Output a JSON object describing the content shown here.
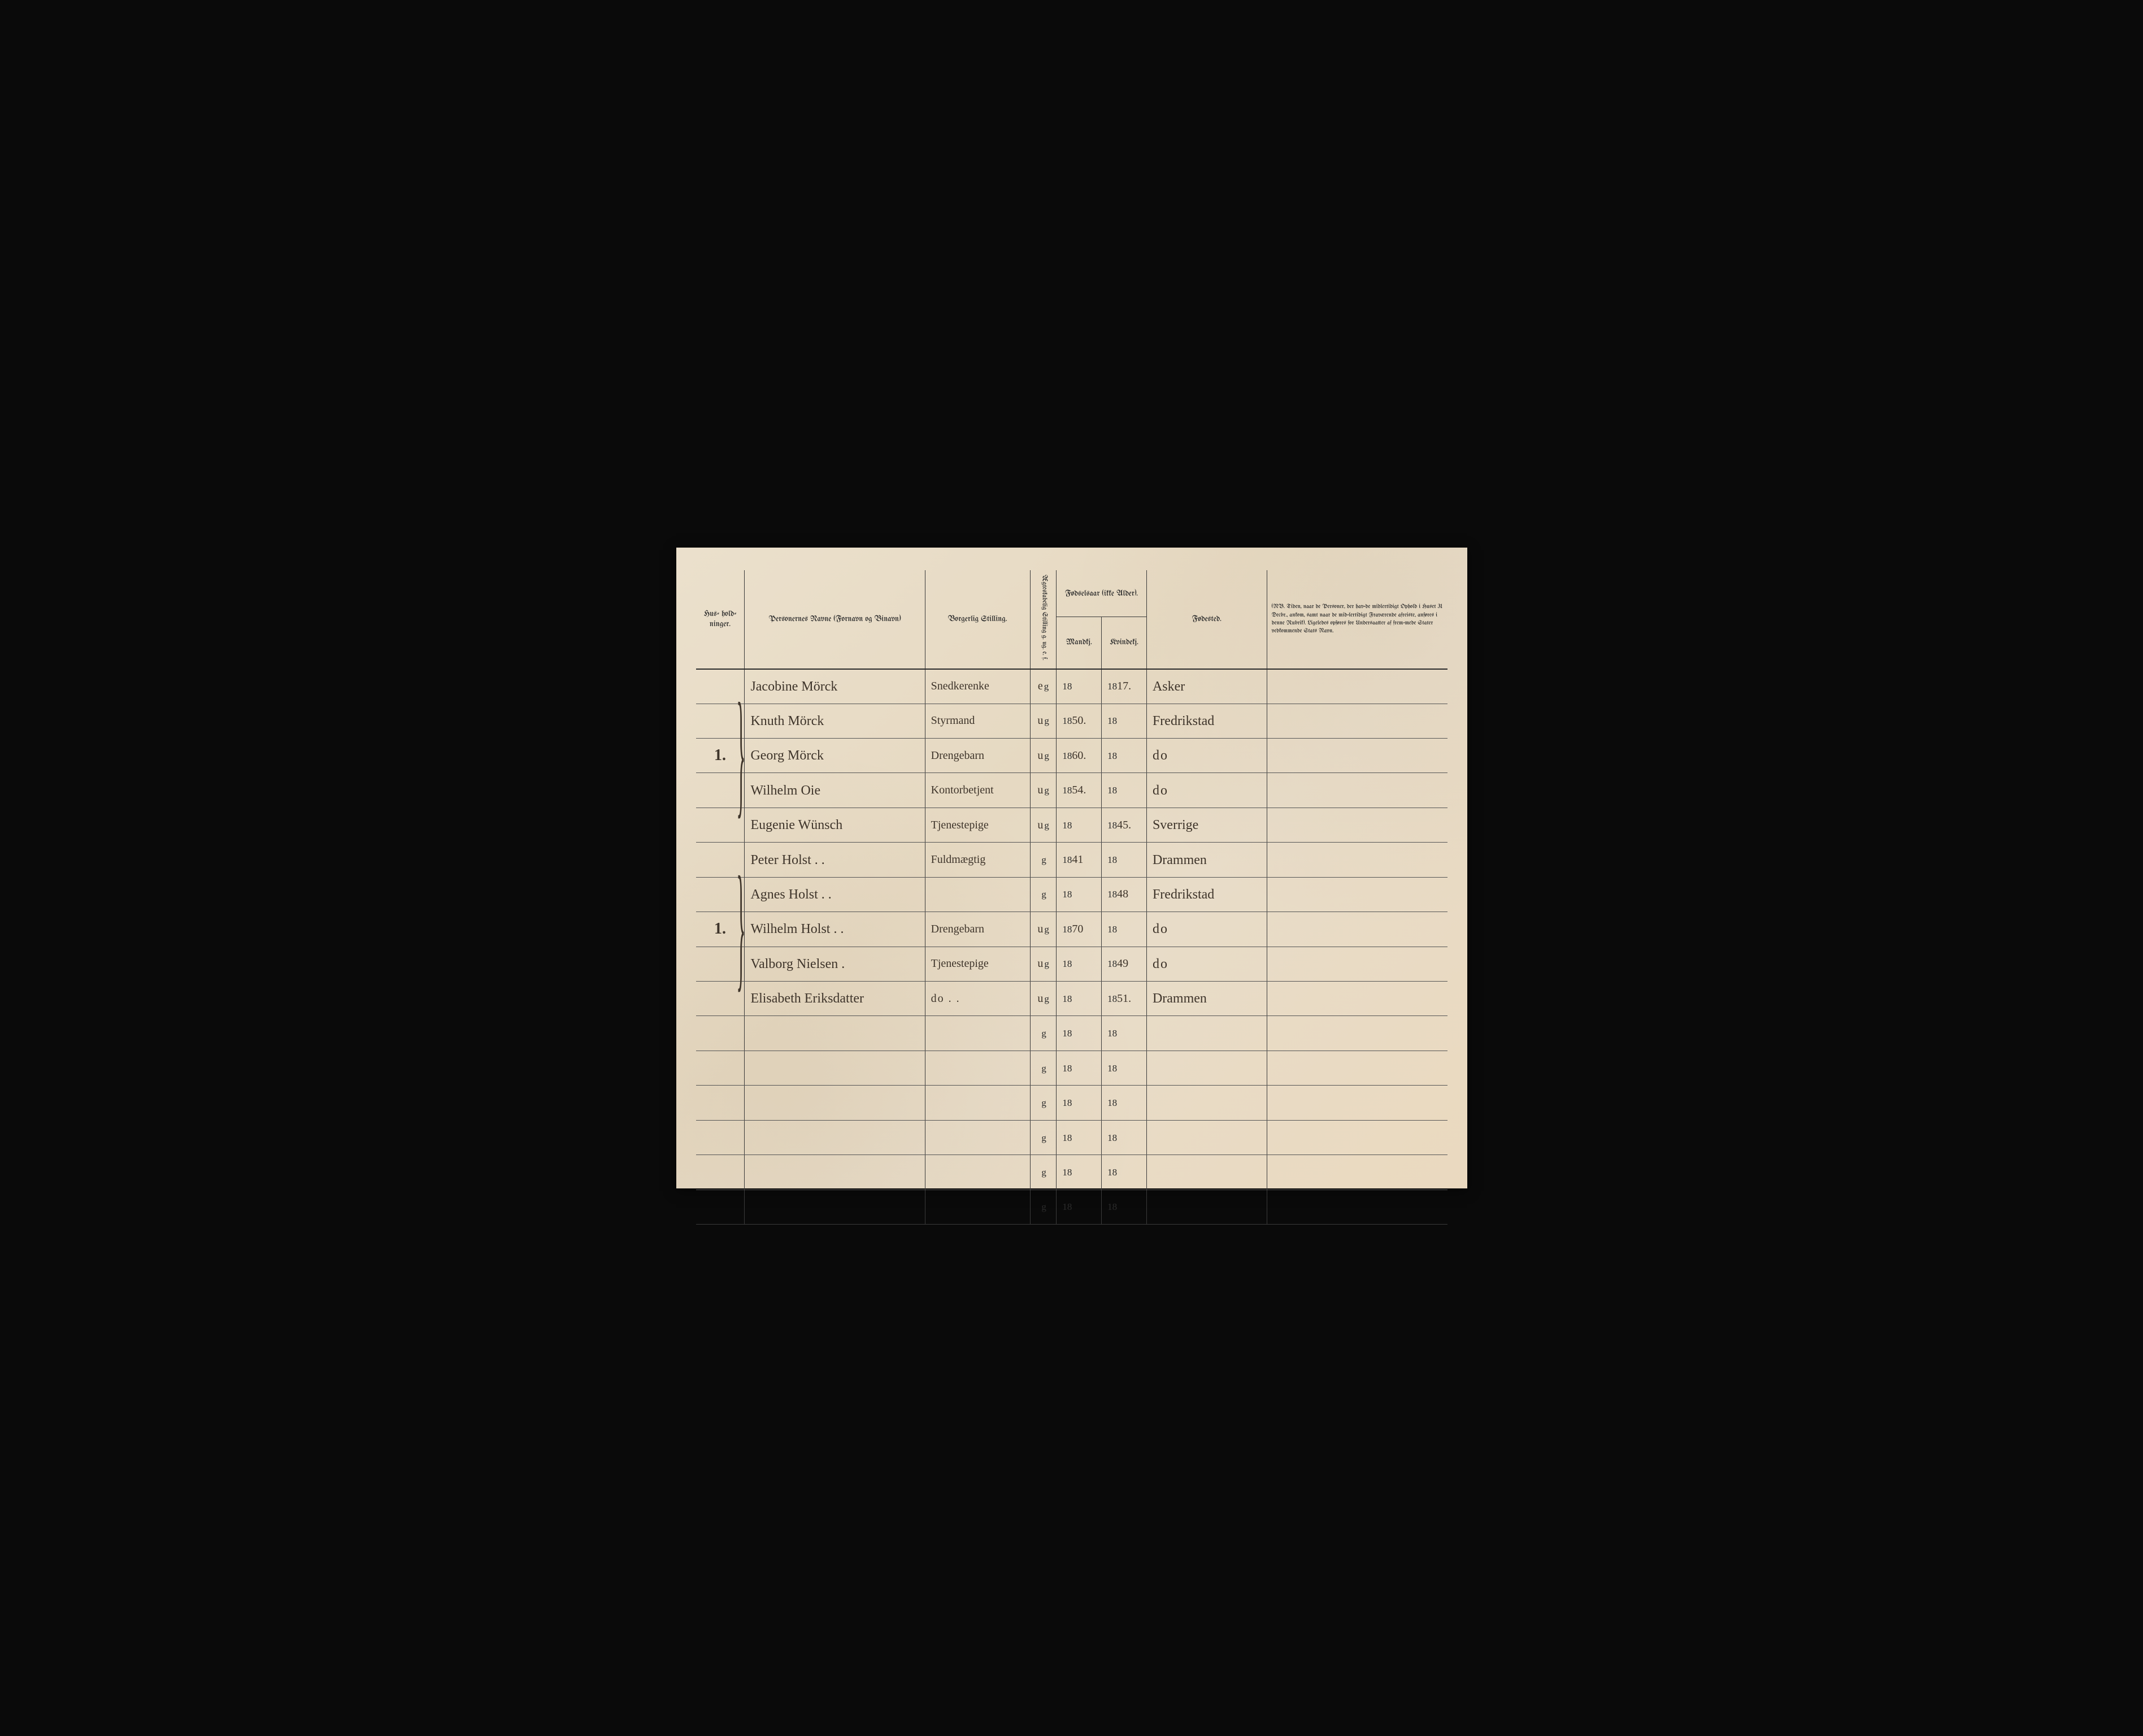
{
  "colors": {
    "paper": "#e8dcc8",
    "ink_print": "#2b2b2b",
    "ink_hand": "#3e342a",
    "rule": "#3a3a3a",
    "background": "#0a0a0a"
  },
  "typography": {
    "header_font": "blackletter",
    "header_fontsize_pt": 11,
    "body_printed_fontsize_pt": 13,
    "handwritten_fontsize_pt": 18
  },
  "headers": {
    "husholdninger": "Hus-\nhold-\nninger.",
    "navne": "Personernes Navne\n(Fornavn og Binavn)",
    "stilling": "Borgerlig Stilling.",
    "aegteskab": "Ægteskabelig Stilling\ng. ug. e. f.",
    "fodselsaar": "Fødselsaar\n(ikke Alder).",
    "mandkj": "Mandkj.",
    "kvindekj": "Kvindekj.",
    "fodested": "Fødested.",
    "nb": "(NB. Tiden, naar de Personer, der hav-de midlertidigt Ophold i Huset 31 Decbr., ankom, samt naar de mid-lertidigt Fraværende afreiste, anføres i denne Rubrik). Ligeledes opføres for Undersaatter af frem-mede Stater vedkommende Stats Navn."
  },
  "year_prefix": "18",
  "marital_fixed_char": "g",
  "rows": [
    {
      "hous": "",
      "name": "Jacobine Mörck",
      "occ": "Snedkerenke",
      "mar_pre": "e",
      "mand": "",
      "kvin": "17.",
      "birth": "Asker",
      "notes": ""
    },
    {
      "hous": "",
      "name": "Knuth Mörck",
      "occ": "Styrmand",
      "mar_pre": "u",
      "mand": "50.",
      "kvin": "",
      "birth": "Fredrikstad",
      "notes": ""
    },
    {
      "hous": "1.",
      "name": "Georg Mörck",
      "occ": "Drengebarn",
      "mar_pre": "u",
      "mand": "60.",
      "kvin": "",
      "birth": "do",
      "notes": ""
    },
    {
      "hous": "",
      "name": "Wilhelm Oie",
      "occ": "Kontorbetjent",
      "mar_pre": "u",
      "mand": "54.",
      "kvin": "",
      "birth": "do",
      "notes": ""
    },
    {
      "hous": "",
      "name": "Eugenie Wünsch",
      "occ": "Tjenestepige",
      "mar_pre": "u",
      "mand": "",
      "kvin": "45.",
      "birth": "Sverrige",
      "notes": ""
    },
    {
      "hous": "",
      "name": "Peter Holst . .",
      "occ": "Fuldmægtig",
      "mar_pre": "",
      "mand": "41",
      "kvin": "",
      "birth": "Drammen",
      "notes": ""
    },
    {
      "hous": "",
      "name": "Agnes Holst . .",
      "occ": "",
      "mar_pre": "",
      "mand": "",
      "kvin": "48",
      "birth": "Fredrikstad",
      "notes": ""
    },
    {
      "hous": "1.",
      "name": "Wilhelm Holst . .",
      "occ": "Drengebarn",
      "mar_pre": "u",
      "mand": "70",
      "kvin": "",
      "birth": "do",
      "notes": ""
    },
    {
      "hous": "",
      "name": "Valborg Nielsen .",
      "occ": "Tjenestepige",
      "mar_pre": "u",
      "mand": "",
      "kvin": "49",
      "birth": "do",
      "notes": ""
    },
    {
      "hous": "",
      "name": "Elisabeth Eriksdatter",
      "occ": "do . .",
      "mar_pre": "u",
      "mand": "",
      "kvin": "51.",
      "birth": "Drammen",
      "notes": ""
    },
    {
      "hous": "",
      "name": "",
      "occ": "",
      "mar_pre": "",
      "mand": "",
      "kvin": "",
      "birth": "",
      "notes": ""
    },
    {
      "hous": "",
      "name": "",
      "occ": "",
      "mar_pre": "",
      "mand": "",
      "kvin": "",
      "birth": "",
      "notes": ""
    },
    {
      "hous": "",
      "name": "",
      "occ": "",
      "mar_pre": "",
      "mand": "",
      "kvin": "",
      "birth": "",
      "notes": ""
    },
    {
      "hous": "",
      "name": "",
      "occ": "",
      "mar_pre": "",
      "mand": "",
      "kvin": "",
      "birth": "",
      "notes": ""
    },
    {
      "hous": "",
      "name": "",
      "occ": "",
      "mar_pre": "",
      "mand": "",
      "kvin": "",
      "birth": "",
      "notes": ""
    },
    {
      "hous": "",
      "name": "",
      "occ": "",
      "mar_pre": "",
      "mand": "",
      "kvin": "",
      "birth": "",
      "notes": ""
    }
  ]
}
